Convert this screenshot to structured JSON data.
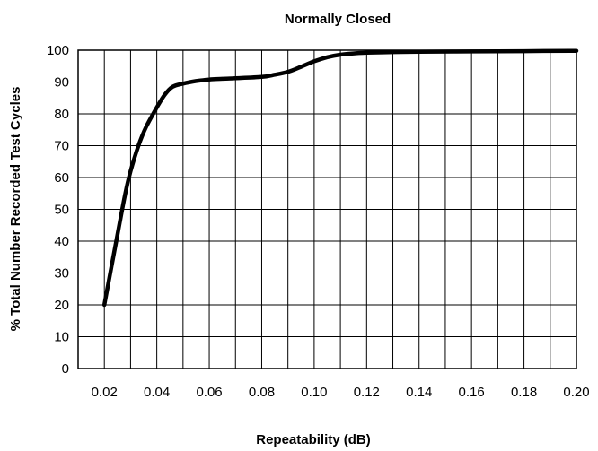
{
  "chart_data": {
    "type": "line",
    "title": "Normally Closed",
    "xlabel": "Repeatability (dB)",
    "ylabel": "% Total Number Recorded Test Cycles",
    "xlim": [
      0.01,
      0.2
    ],
    "ylim": [
      0,
      100
    ],
    "x_ticks": [
      0.02,
      0.04,
      0.06,
      0.08,
      0.1,
      0.12,
      0.14,
      0.16,
      0.18,
      0.2
    ],
    "x_tick_labels": [
      "0.02",
      "0.04",
      "0.06",
      "0.08",
      "0.10",
      "0.12",
      "0.14",
      "0.16",
      "0.18",
      "0.20"
    ],
    "y_ticks": [
      0,
      10,
      20,
      30,
      40,
      50,
      60,
      70,
      80,
      90,
      100
    ],
    "y_tick_labels": [
      "0",
      "10",
      "20",
      "30",
      "40",
      "50",
      "60",
      "70",
      "80",
      "90",
      "100"
    ],
    "grid": true,
    "series": [
      {
        "x": [
          0.02,
          0.025,
          0.028,
          0.03,
          0.033,
          0.036,
          0.04,
          0.043,
          0.046,
          0.05,
          0.055,
          0.06,
          0.065,
          0.07,
          0.08,
          0.085,
          0.09,
          0.095,
          0.1,
          0.105,
          0.11,
          0.115,
          0.12,
          0.13,
          0.14,
          0.16,
          0.18,
          0.2
        ],
        "y": [
          20,
          42,
          55,
          62,
          70,
          76,
          82,
          86,
          88.5,
          89.5,
          90.3,
          90.8,
          91,
          91.2,
          91.6,
          92.3,
          93.2,
          94.8,
          96.5,
          97.8,
          98.6,
          99,
          99.2,
          99.4,
          99.5,
          99.6,
          99.7,
          99.8
        ],
        "color": "#000000"
      }
    ]
  }
}
